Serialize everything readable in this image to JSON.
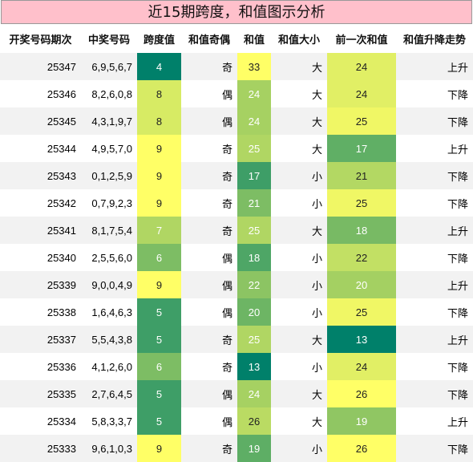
{
  "title": "近15期跨度，和值图示分析",
  "headers": [
    "开奖号码期次",
    "中奖号码",
    "跨度值",
    "和值奇偶",
    "和值",
    "和值大小",
    "前一次和值",
    "和值升降走势"
  ],
  "rows": [
    {
      "period": "25347",
      "numbers": "6,9,5,6,7",
      "span": "4",
      "parity": "奇",
      "sum": "33",
      "size": "大",
      "prev_sum": "24",
      "trend": "上升"
    },
    {
      "period": "25346",
      "numbers": "8,2,6,0,8",
      "span": "8",
      "parity": "偶",
      "sum": "24",
      "size": "大",
      "prev_sum": "24",
      "trend": "下降"
    },
    {
      "period": "25345",
      "numbers": "4,3,1,9,7",
      "span": "8",
      "parity": "偶",
      "sum": "24",
      "size": "大",
      "prev_sum": "25",
      "trend": "下降"
    },
    {
      "period": "25344",
      "numbers": "4,9,5,7,0",
      "span": "9",
      "parity": "奇",
      "sum": "25",
      "size": "大",
      "prev_sum": "17",
      "trend": "上升"
    },
    {
      "period": "25343",
      "numbers": "0,1,2,5,9",
      "span": "9",
      "parity": "奇",
      "sum": "17",
      "size": "小",
      "prev_sum": "21",
      "trend": "下降"
    },
    {
      "period": "25342",
      "numbers": "0,7,9,2,3",
      "span": "9",
      "parity": "奇",
      "sum": "21",
      "size": "小",
      "prev_sum": "25",
      "trend": "下降"
    },
    {
      "period": "25341",
      "numbers": "8,1,7,5,4",
      "span": "7",
      "parity": "奇",
      "sum": "25",
      "size": "大",
      "prev_sum": "18",
      "trend": "上升"
    },
    {
      "period": "25340",
      "numbers": "2,5,5,6,0",
      "span": "6",
      "parity": "偶",
      "sum": "18",
      "size": "小",
      "prev_sum": "22",
      "trend": "下降"
    },
    {
      "period": "25339",
      "numbers": "9,0,0,4,9",
      "span": "9",
      "parity": "偶",
      "sum": "22",
      "size": "小",
      "prev_sum": "20",
      "trend": "上升"
    },
    {
      "period": "25338",
      "numbers": "1,6,4,6,3",
      "span": "5",
      "parity": "偶",
      "sum": "20",
      "size": "小",
      "prev_sum": "25",
      "trend": "下降"
    },
    {
      "period": "25337",
      "numbers": "5,5,4,3,8",
      "span": "5",
      "parity": "奇",
      "sum": "25",
      "size": "大",
      "prev_sum": "13",
      "trend": "上升"
    },
    {
      "period": "25336",
      "numbers": "4,1,2,6,0",
      "span": "6",
      "parity": "奇",
      "sum": "13",
      "size": "小",
      "prev_sum": "24",
      "trend": "下降"
    },
    {
      "period": "25335",
      "numbers": "2,7,6,4,5",
      "span": "5",
      "parity": "偶",
      "sum": "24",
      "size": "大",
      "prev_sum": "26",
      "trend": "下降"
    },
    {
      "period": "25334",
      "numbers": "5,8,3,3,7",
      "span": "5",
      "parity": "偶",
      "sum": "26",
      "size": "大",
      "prev_sum": "19",
      "trend": "上升"
    },
    {
      "period": "25333",
      "numbers": "9,6,1,0,3",
      "span": "9",
      "parity": "奇",
      "sum": "19",
      "size": "小",
      "prev_sum": "26",
      "trend": "下降"
    }
  ],
  "colors": {
    "heat_low": "#00806a",
    "heat_high": "#ffff66",
    "title_bg": "#ffc0cb"
  }
}
